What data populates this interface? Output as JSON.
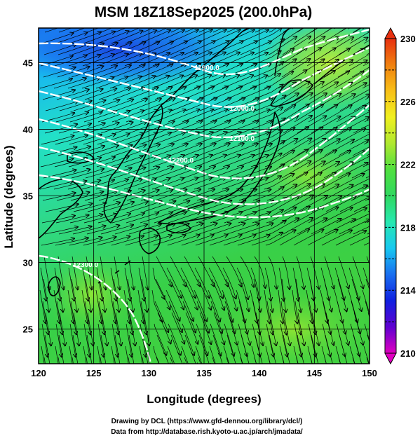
{
  "title": "MSM 18Z18Sep2025 (200.0hPa)",
  "xlabel": "Longitude (degrees)",
  "ylabel": "Latitude  (degrees)",
  "footer": {
    "line1": "Drawing by DCL (https://www.gfd-dennou.org/library/dcl/)",
    "line2": "Data from http://database.rish.kyoto-u.ac.jp/arch/jmadata/"
  },
  "map": {
    "lon_range": [
      120,
      150
    ],
    "lat_range": [
      22.4,
      47.6
    ],
    "lon_ticks": [
      "120",
      "125",
      "130",
      "135",
      "140",
      "145",
      "150"
    ],
    "lat_ticks": [
      "25",
      "30",
      "35",
      "40",
      "45"
    ],
    "grid": true
  },
  "colorbar": {
    "min": 210,
    "max": 230,
    "tick_labels": [
      "210",
      "214",
      "218",
      "222",
      "226",
      "230"
    ],
    "colors": [
      "#e000c0",
      "#6000d0",
      "#1020e0",
      "#1a6ff0",
      "#18c8f0",
      "#28e8b0",
      "#30d860",
      "#50e040",
      "#b0e830",
      "#f0f020",
      "#f8c018",
      "#f08010",
      "#e83010"
    ]
  },
  "contours": [
    {
      "label": "11900.0"
    },
    {
      "label": "12000.0"
    },
    {
      "label": "12100.0"
    },
    {
      "label": "12200.0"
    },
    {
      "label": "12300.0"
    }
  ],
  "colors": {
    "contour": "#ffffff",
    "coast": "#000000",
    "streamline": "#000000"
  }
}
